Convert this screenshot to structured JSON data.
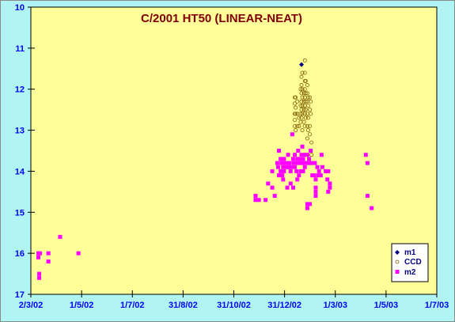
{
  "chart_data": {
    "type": "scatter",
    "title": "C/2001 HT50 (LINEAR-NEAT)",
    "xlabel": "",
    "ylabel": "",
    "x_ticks": [
      "2/3/02",
      "1/5/02",
      "1/7/02",
      "31/8/02",
      "31/10/02",
      "31/12/02",
      "1/3/03",
      "1/5/03",
      "1/7/03"
    ],
    "x_range": [
      "2002-03-02",
      "2003-07-01"
    ],
    "y_ticks": [
      "10",
      "11",
      "12",
      "13",
      "14",
      "15",
      "16",
      "17"
    ],
    "ylim": [
      10,
      17
    ],
    "y_inverted": true,
    "grid": false,
    "legend_position": "bottom-right",
    "colors": {
      "plot_bg": "#ffff99",
      "outer_bg": "#b0f4f4",
      "m1": "#000080",
      "ccd": "#806000",
      "m2": "#ff00ff",
      "tick_text": "#0000ff",
      "title_text": "#800000"
    },
    "series": [
      {
        "name": "m1",
        "marker": "diamond",
        "points": [
          [
            "2003-01-20",
            11.4
          ]
        ]
      },
      {
        "name": "CCD",
        "marker": "circle",
        "points": [
          [
            "2003-01-12",
            12.2
          ],
          [
            "2003-01-12",
            12.35
          ],
          [
            "2003-01-12",
            12.6
          ],
          [
            "2003-01-12",
            12.75
          ],
          [
            "2003-01-12",
            12.9
          ],
          [
            "2003-01-13",
            12.2
          ],
          [
            "2003-01-13",
            12.45
          ],
          [
            "2003-01-13",
            12.6
          ],
          [
            "2003-01-13",
            13.0
          ],
          [
            "2003-01-15",
            12.3
          ],
          [
            "2003-01-15",
            12.6
          ],
          [
            "2003-01-15",
            12.9
          ],
          [
            "2003-01-17",
            12.7
          ],
          [
            "2003-01-17",
            12.9
          ],
          [
            "2003-01-19",
            12.0
          ],
          [
            "2003-01-19",
            12.4
          ],
          [
            "2003-01-19",
            12.6
          ],
          [
            "2003-01-19",
            12.8
          ],
          [
            "2003-01-20",
            11.7
          ],
          [
            "2003-01-20",
            11.9
          ],
          [
            "2003-01-20",
            12.1
          ],
          [
            "2003-01-20",
            12.3
          ],
          [
            "2003-01-20",
            12.5
          ],
          [
            "2003-01-20",
            12.7
          ],
          [
            "2003-01-21",
            11.6
          ],
          [
            "2003-01-21",
            12.0
          ],
          [
            "2003-01-21",
            12.2
          ],
          [
            "2003-01-21",
            12.4
          ],
          [
            "2003-01-21",
            12.6
          ],
          [
            "2003-01-21",
            13.0
          ],
          [
            "2003-01-23",
            12.1
          ],
          [
            "2003-01-23",
            12.3
          ],
          [
            "2003-01-23",
            12.5
          ],
          [
            "2003-01-23",
            12.8
          ],
          [
            "2003-01-24",
            11.3
          ],
          [
            "2003-01-24",
            11.6
          ],
          [
            "2003-01-24",
            11.8
          ],
          [
            "2003-01-24",
            12.0
          ],
          [
            "2003-01-24",
            12.2
          ],
          [
            "2003-01-24",
            12.4
          ],
          [
            "2003-01-24",
            12.6
          ],
          [
            "2003-01-24",
            12.9
          ],
          [
            "2003-01-25",
            11.8
          ],
          [
            "2003-01-25",
            12.1
          ],
          [
            "2003-01-25",
            12.3
          ],
          [
            "2003-01-25",
            12.5
          ],
          [
            "2003-01-25",
            12.7
          ],
          [
            "2003-01-27",
            11.9
          ],
          [
            "2003-01-27",
            12.1
          ],
          [
            "2003-01-27",
            12.3
          ],
          [
            "2003-01-27",
            12.6
          ],
          [
            "2003-01-27",
            12.9
          ],
          [
            "2003-01-27",
            13.2
          ],
          [
            "2003-01-28",
            12.2
          ],
          [
            "2003-01-28",
            12.4
          ],
          [
            "2003-01-28",
            12.7
          ],
          [
            "2003-01-28",
            13.0
          ],
          [
            "2003-01-30",
            12.2
          ],
          [
            "2003-01-30",
            12.5
          ],
          [
            "2003-01-30",
            12.9
          ],
          [
            "2003-01-30",
            13.1
          ],
          [
            "2003-01-31",
            12.3
          ],
          [
            "2003-01-31",
            12.6
          ],
          [
            "2003-02-01",
            13.3
          ],
          [
            "2003-02-01",
            13.6
          ]
        ]
      },
      {
        "name": "m2",
        "marker": "square",
        "points": [
          [
            "2002-03-11",
            16.0
          ],
          [
            "2002-03-11",
            16.1
          ],
          [
            "2002-03-12",
            16.5
          ],
          [
            "2002-03-12",
            16.6
          ],
          [
            "2002-03-13",
            16.0
          ],
          [
            "2002-03-23",
            16.0
          ],
          [
            "2002-03-23",
            16.2
          ],
          [
            "2002-04-06",
            15.6
          ],
          [
            "2002-04-28",
            16.0
          ],
          [
            "2002-11-26",
            14.6
          ],
          [
            "2002-11-26",
            14.7
          ],
          [
            "2002-11-30",
            14.7
          ],
          [
            "2002-12-08",
            14.7
          ],
          [
            "2002-12-11",
            14.3
          ],
          [
            "2002-12-16",
            14.0
          ],
          [
            "2002-12-16",
            14.4
          ],
          [
            "2002-12-19",
            14.6
          ],
          [
            "2002-12-22",
            13.8
          ],
          [
            "2002-12-23",
            13.9
          ],
          [
            "2002-12-24",
            13.5
          ],
          [
            "2002-12-24",
            14.1
          ],
          [
            "2002-12-26",
            13.7
          ],
          [
            "2002-12-26",
            14.0
          ],
          [
            "2002-12-27",
            13.8
          ],
          [
            "2002-12-28",
            13.8
          ],
          [
            "2002-12-28",
            14.1
          ],
          [
            "2002-12-29",
            13.9
          ],
          [
            "2002-12-29",
            14.2
          ],
          [
            "2002-12-30",
            13.7
          ],
          [
            "2002-12-30",
            14.0
          ],
          [
            "2003-01-01",
            13.8
          ],
          [
            "2003-01-02",
            13.9
          ],
          [
            "2003-01-03",
            14.4
          ],
          [
            "2003-01-04",
            13.6
          ],
          [
            "2003-01-04",
            13.9
          ],
          [
            "2003-01-05",
            13.8
          ],
          [
            "2003-01-06",
            13.8
          ],
          [
            "2003-01-07",
            14.0
          ],
          [
            "2003-01-07",
            14.3
          ],
          [
            "2003-01-08",
            13.9
          ],
          [
            "2003-01-09",
            13.1
          ],
          [
            "2003-01-10",
            13.7
          ],
          [
            "2003-01-10",
            14.4
          ],
          [
            "2003-01-11",
            13.8
          ],
          [
            "2003-01-12",
            13.6
          ],
          [
            "2003-01-12",
            13.9
          ],
          [
            "2003-01-14",
            13.8
          ],
          [
            "2003-01-14",
            14.0
          ],
          [
            "2003-01-15",
            13.7
          ],
          [
            "2003-01-15",
            14.2
          ],
          [
            "2003-01-16",
            13.5
          ],
          [
            "2003-01-16",
            13.8
          ],
          [
            "2003-01-17",
            13.8
          ],
          [
            "2003-01-17",
            14.1
          ],
          [
            "2003-01-19",
            13.7
          ],
          [
            "2003-01-19",
            14.0
          ],
          [
            "2003-01-20",
            13.6
          ],
          [
            "2003-01-20",
            13.8
          ],
          [
            "2003-01-21",
            13.4
          ],
          [
            "2003-01-21",
            13.8
          ],
          [
            "2003-01-22",
            13.7
          ],
          [
            "2003-01-22",
            14.0
          ],
          [
            "2003-01-23",
            13.8
          ],
          [
            "2003-01-24",
            13.6
          ],
          [
            "2003-01-24",
            13.9
          ],
          [
            "2003-01-26",
            13.8
          ],
          [
            "2003-01-27",
            13.6
          ],
          [
            "2003-01-27",
            14.8
          ],
          [
            "2003-01-27",
            14.9
          ],
          [
            "2003-01-28",
            13.8
          ],
          [
            "2003-01-29",
            13.7
          ],
          [
            "2003-01-30",
            13.8
          ],
          [
            "2003-01-30",
            14.8
          ],
          [
            "2003-01-31",
            13.5
          ],
          [
            "2003-01-31",
            13.8
          ],
          [
            "2003-02-01",
            13.8
          ],
          [
            "2003-02-02",
            14.1
          ],
          [
            "2003-02-04",
            14.1
          ],
          [
            "2003-02-05",
            13.8
          ],
          [
            "2003-02-06",
            14.2
          ],
          [
            "2003-02-06",
            14.4
          ],
          [
            "2003-02-06",
            14.5
          ],
          [
            "2003-02-06",
            14.6
          ],
          [
            "2003-02-08",
            13.9
          ],
          [
            "2003-02-09",
            14.1
          ],
          [
            "2003-02-10",
            14.0
          ],
          [
            "2003-02-12",
            14.1
          ],
          [
            "2003-02-13",
            13.6
          ],
          [
            "2003-02-14",
            13.9
          ],
          [
            "2003-02-18",
            14.0
          ],
          [
            "2003-02-20",
            14.2
          ],
          [
            "2003-02-21",
            14.0
          ],
          [
            "2003-02-21",
            14.5
          ],
          [
            "2003-02-23",
            14.3
          ],
          [
            "2003-02-23",
            14.4
          ],
          [
            "2003-04-07",
            13.6
          ],
          [
            "2003-04-09",
            13.8
          ],
          [
            "2003-04-09",
            14.6
          ],
          [
            "2003-04-14",
            14.9
          ]
        ]
      }
    ]
  }
}
